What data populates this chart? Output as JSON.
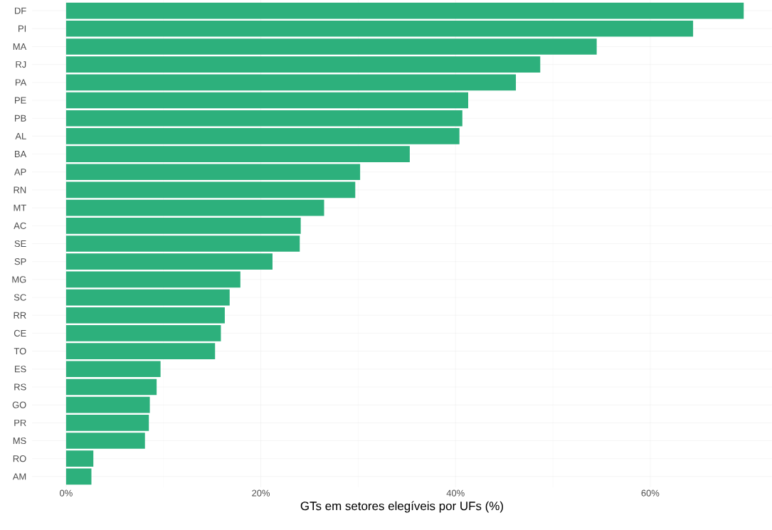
{
  "chart_data": {
    "type": "bar",
    "orientation": "horizontal",
    "xlabel": "GTs em setores elegíveis por UFs (%)",
    "categories": [
      "DF",
      "PI",
      "MA",
      "RJ",
      "PA",
      "PE",
      "PB",
      "AL",
      "BA",
      "AP",
      "RN",
      "MT",
      "AC",
      "SE",
      "SP",
      "MG",
      "SC",
      "RR",
      "CE",
      "TO",
      "ES",
      "RS",
      "GO",
      "PR",
      "MS",
      "RO",
      "AM"
    ],
    "values": [
      69.6,
      64.4,
      54.5,
      48.7,
      46.2,
      41.3,
      40.7,
      40.4,
      35.3,
      30.2,
      29.7,
      26.5,
      24.1,
      24.0,
      21.2,
      17.9,
      16.8,
      16.3,
      15.9,
      15.3,
      9.7,
      9.3,
      8.6,
      8.5,
      8.1,
      2.8,
      2.6
    ],
    "color": "#2db07c",
    "xlim": [
      -3.5,
      72.5
    ],
    "xticks": [
      {
        "value": 0,
        "label": "0%"
      },
      {
        "value": 20,
        "label": "20%"
      },
      {
        "value": 40,
        "label": "40%"
      },
      {
        "value": 60,
        "label": "60%"
      }
    ],
    "grid": true
  }
}
